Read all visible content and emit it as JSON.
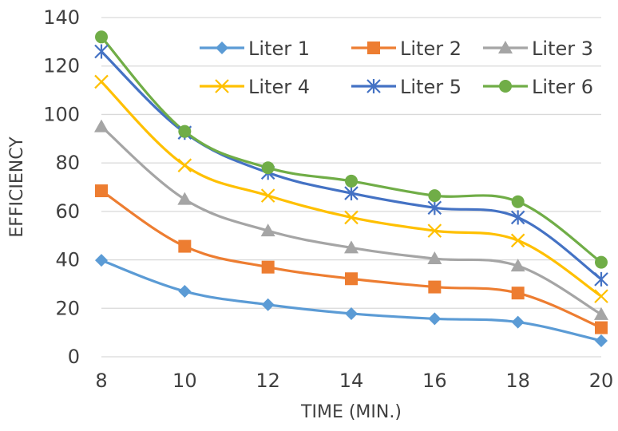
{
  "chart_data": {
    "type": "line",
    "title": "",
    "xlabel": "TIME (MIN.)",
    "ylabel": "EFFICIENCY",
    "x": [
      8,
      10,
      12,
      14,
      16,
      18,
      20
    ],
    "xlim": [
      8,
      20
    ],
    "ylim": [
      0,
      140
    ],
    "y_ticks": [
      0,
      20,
      40,
      60,
      80,
      100,
      120,
      140
    ],
    "x_ticks": [
      8,
      10,
      12,
      14,
      16,
      18,
      20
    ],
    "grid": "horizontal",
    "legend_position": "top-right",
    "smooth": true,
    "series": [
      {
        "name": "Liter 1",
        "color": "#5B9BD5",
        "marker": "diamond",
        "values": [
          39.8,
          27.0,
          21.5,
          17.8,
          15.7,
          14.3,
          6.6
        ]
      },
      {
        "name": "Liter 2",
        "color": "#ED7D31",
        "marker": "square",
        "values": [
          68.5,
          45.6,
          37.0,
          32.2,
          28.8,
          26.3,
          12.0
        ]
      },
      {
        "name": "Liter 3",
        "color": "#A5A5A5",
        "marker": "triangle",
        "values": [
          95.0,
          65.0,
          52.0,
          45.0,
          40.5,
          37.5,
          17.5
        ]
      },
      {
        "name": "Liter 4",
        "color": "#FFC000",
        "marker": "x",
        "values": [
          113.5,
          79.0,
          66.5,
          57.5,
          52.0,
          48.0,
          25.0
        ]
      },
      {
        "name": "Liter 5",
        "color": "#4472C4",
        "marker": "star",
        "values": [
          126.0,
          92.5,
          76.0,
          67.5,
          61.5,
          57.5,
          32.0
        ]
      },
      {
        "name": "Liter 6",
        "color": "#70AD47",
        "marker": "circle",
        "values": [
          132.0,
          93.0,
          78.0,
          72.5,
          66.5,
          64.0,
          39.0
        ]
      }
    ]
  }
}
